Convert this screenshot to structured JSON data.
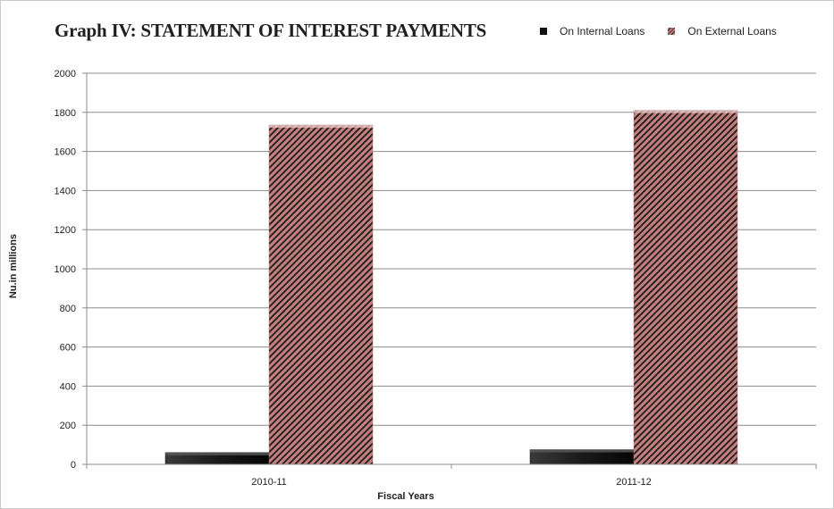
{
  "chart_data": {
    "type": "bar",
    "title": "Graph IV: STATEMENT OF INTEREST PAYMENTS",
    "xlabel": "Fiscal Years",
    "ylabel": "Nu.in millions",
    "categories": [
      "2010-11",
      "2011-12"
    ],
    "series": [
      {
        "name": "On Internal Loans",
        "values": [
          60,
          75
        ],
        "color": "#111111",
        "pattern": "solid"
      },
      {
        "name": "On External Loans",
        "values": [
          1735,
          1810
        ],
        "color": "#c07878",
        "pattern": "diagonal-hatch"
      }
    ],
    "ylim": [
      0,
      2000
    ],
    "yticks": [
      "0",
      "200",
      "400",
      "600",
      "800",
      "1000",
      "1200",
      "1400",
      "1600",
      "1800",
      "2000"
    ],
    "grid": true,
    "legend_position": "top-right"
  }
}
